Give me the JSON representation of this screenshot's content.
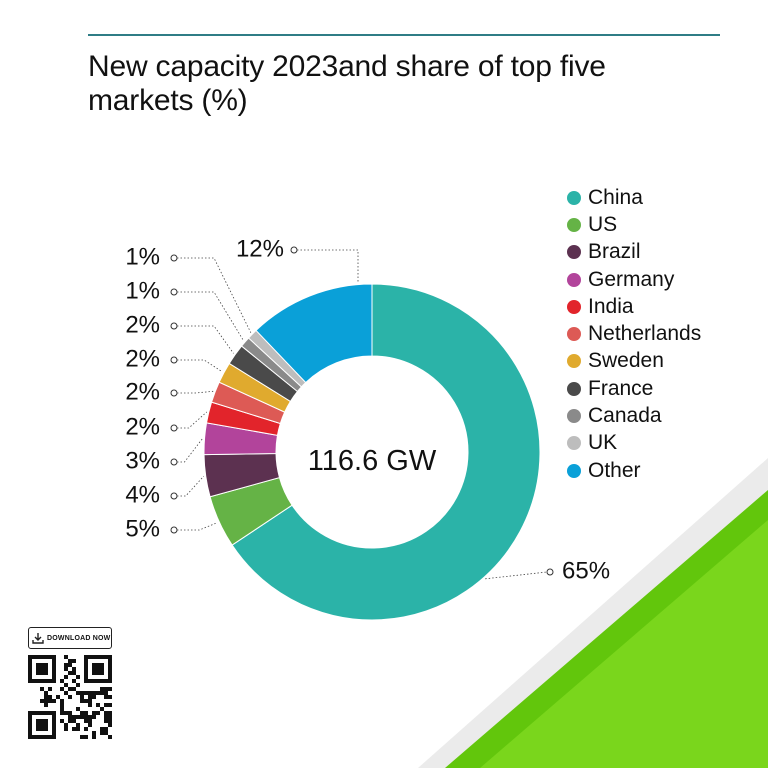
{
  "title": "New capacity 2023and share of top five markets (%)",
  "center_label": "116.6 GW",
  "download_label": "DOWNLOAD NOW",
  "colors": {
    "rule": "#2f7d86",
    "accent_green": "#5fc80a",
    "shadow_grey": "#e6e6e6"
  },
  "chart_data": {
    "type": "pie",
    "donut": true,
    "total_label": "116.6 GW",
    "slices": [
      {
        "name": "China",
        "value": 65,
        "label": "65%",
        "color": "#2bb3a8"
      },
      {
        "name": "US",
        "value": 5,
        "label": "5%",
        "color": "#65b346"
      },
      {
        "name": "Brazil",
        "value": 4,
        "label": "4%",
        "color": "#5c3150"
      },
      {
        "name": "Germany",
        "value": 3,
        "label": "3%",
        "color": "#b2449b"
      },
      {
        "name": "India",
        "value": 2,
        "label": "2%",
        "color": "#e2242b"
      },
      {
        "name": "Netherlands",
        "value": 2,
        "label": "2%",
        "color": "#dd5a55"
      },
      {
        "name": "Sweden",
        "value": 2,
        "label": "2%",
        "color": "#e0aa2e"
      },
      {
        "name": "France",
        "value": 2,
        "label": "2%",
        "color": "#4a4a4a"
      },
      {
        "name": "Canada",
        "value": 1,
        "label": "1%",
        "color": "#8a8a8a"
      },
      {
        "name": "UK",
        "value": 1,
        "label": "1%",
        "color": "#bdbdbd"
      },
      {
        "name": "Other",
        "value": 12,
        "label": "12%",
        "color": "#0aa0d8"
      }
    ],
    "legend_placement": "right"
  }
}
